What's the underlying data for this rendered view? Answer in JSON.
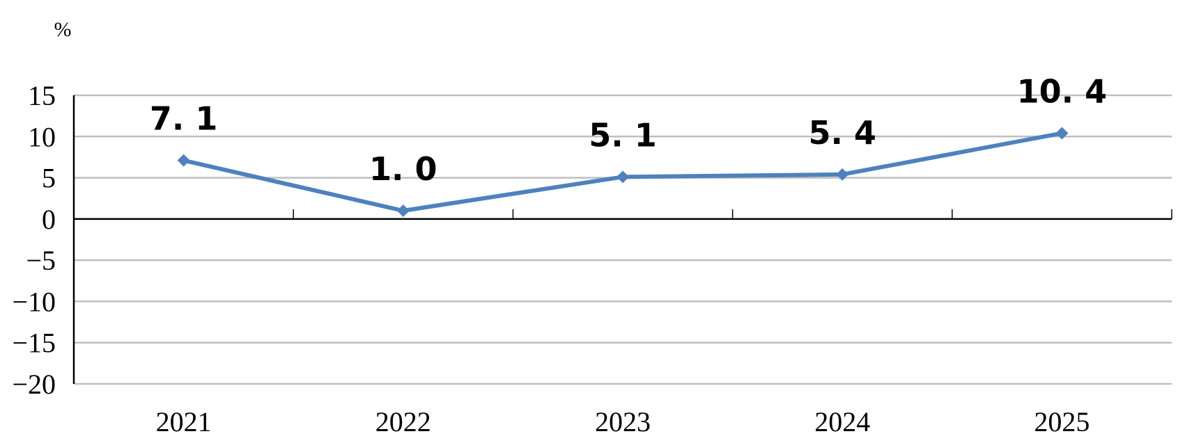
{
  "chart_data": {
    "type": "line",
    "y_unit_label": "%",
    "categories": [
      "2021",
      "2022",
      "2023",
      "2024",
      "2025"
    ],
    "series": [
      {
        "values": [
          7.1,
          1.0,
          5.1,
          5.4,
          10.4
        ]
      }
    ],
    "data_labels": [
      "7. 1",
      "1. 0",
      "5. 1",
      "5. 4",
      "10. 4"
    ],
    "y_ticks": [
      15,
      10,
      5,
      0,
      -5,
      -10,
      -15,
      -20
    ],
    "y_tick_labels": [
      "15",
      "10",
      "5",
      "0",
      "−5",
      "−10",
      "−15",
      "−20"
    ],
    "ylim": [
      -20,
      15
    ],
    "grid": true,
    "legend": "none",
    "title": "",
    "xlabel": "",
    "ylabel": "",
    "colors": {
      "series": "#4f81bd",
      "grid": "#bfbfbf",
      "axis": "#000000"
    }
  }
}
